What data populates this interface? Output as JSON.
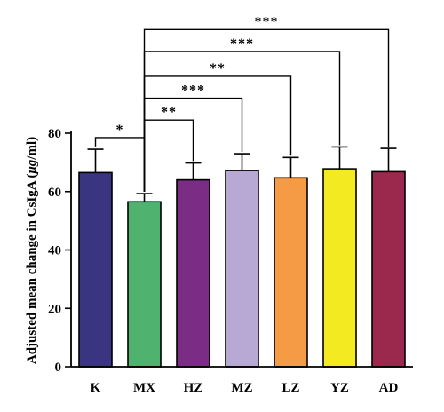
{
  "chart_data": {
    "type": "bar",
    "title": "",
    "xlabel": "",
    "ylabel": "Adjusted mean change in CsIgA (μg/ml)",
    "ylabel_parts": {
      "before": "Adjusted mean change in CsIgA (",
      "unit_italic": "μg",
      "after": "/ml)"
    },
    "ylim": [
      0,
      80
    ],
    "yticks": [
      0,
      20,
      40,
      60,
      80
    ],
    "grid": false,
    "categories": [
      "K",
      "MX",
      "HZ",
      "MZ",
      "LZ",
      "YZ",
      "AD"
    ],
    "values": [
      66.5,
      56.5,
      64.0,
      67.2,
      64.7,
      67.8,
      66.8
    ],
    "error_bars": [
      8.0,
      2.8,
      5.8,
      5.8,
      7.0,
      7.5,
      8.0
    ],
    "colors": [
      "#3a3580",
      "#4fb26f",
      "#7b2d85",
      "#b7a9d3",
      "#f59a45",
      "#f4ea22",
      "#9a294d"
    ],
    "significance": [
      {
        "from": "K",
        "to": "MX",
        "label": "*",
        "y": 78.5
      },
      {
        "from": "MX",
        "to": "HZ",
        "label": "**",
        "y": 84.5
      },
      {
        "from": "MX",
        "to": "MZ",
        "label": "***",
        "y": 92.0
      },
      {
        "from": "MX",
        "to": "LZ",
        "label": "**",
        "y": 99.5
      },
      {
        "from": "MX",
        "to": "YZ",
        "label": "***",
        "y": 108.0
      },
      {
        "from": "MX",
        "to": "AD",
        "label": "***",
        "y": 115.5
      }
    ]
  }
}
